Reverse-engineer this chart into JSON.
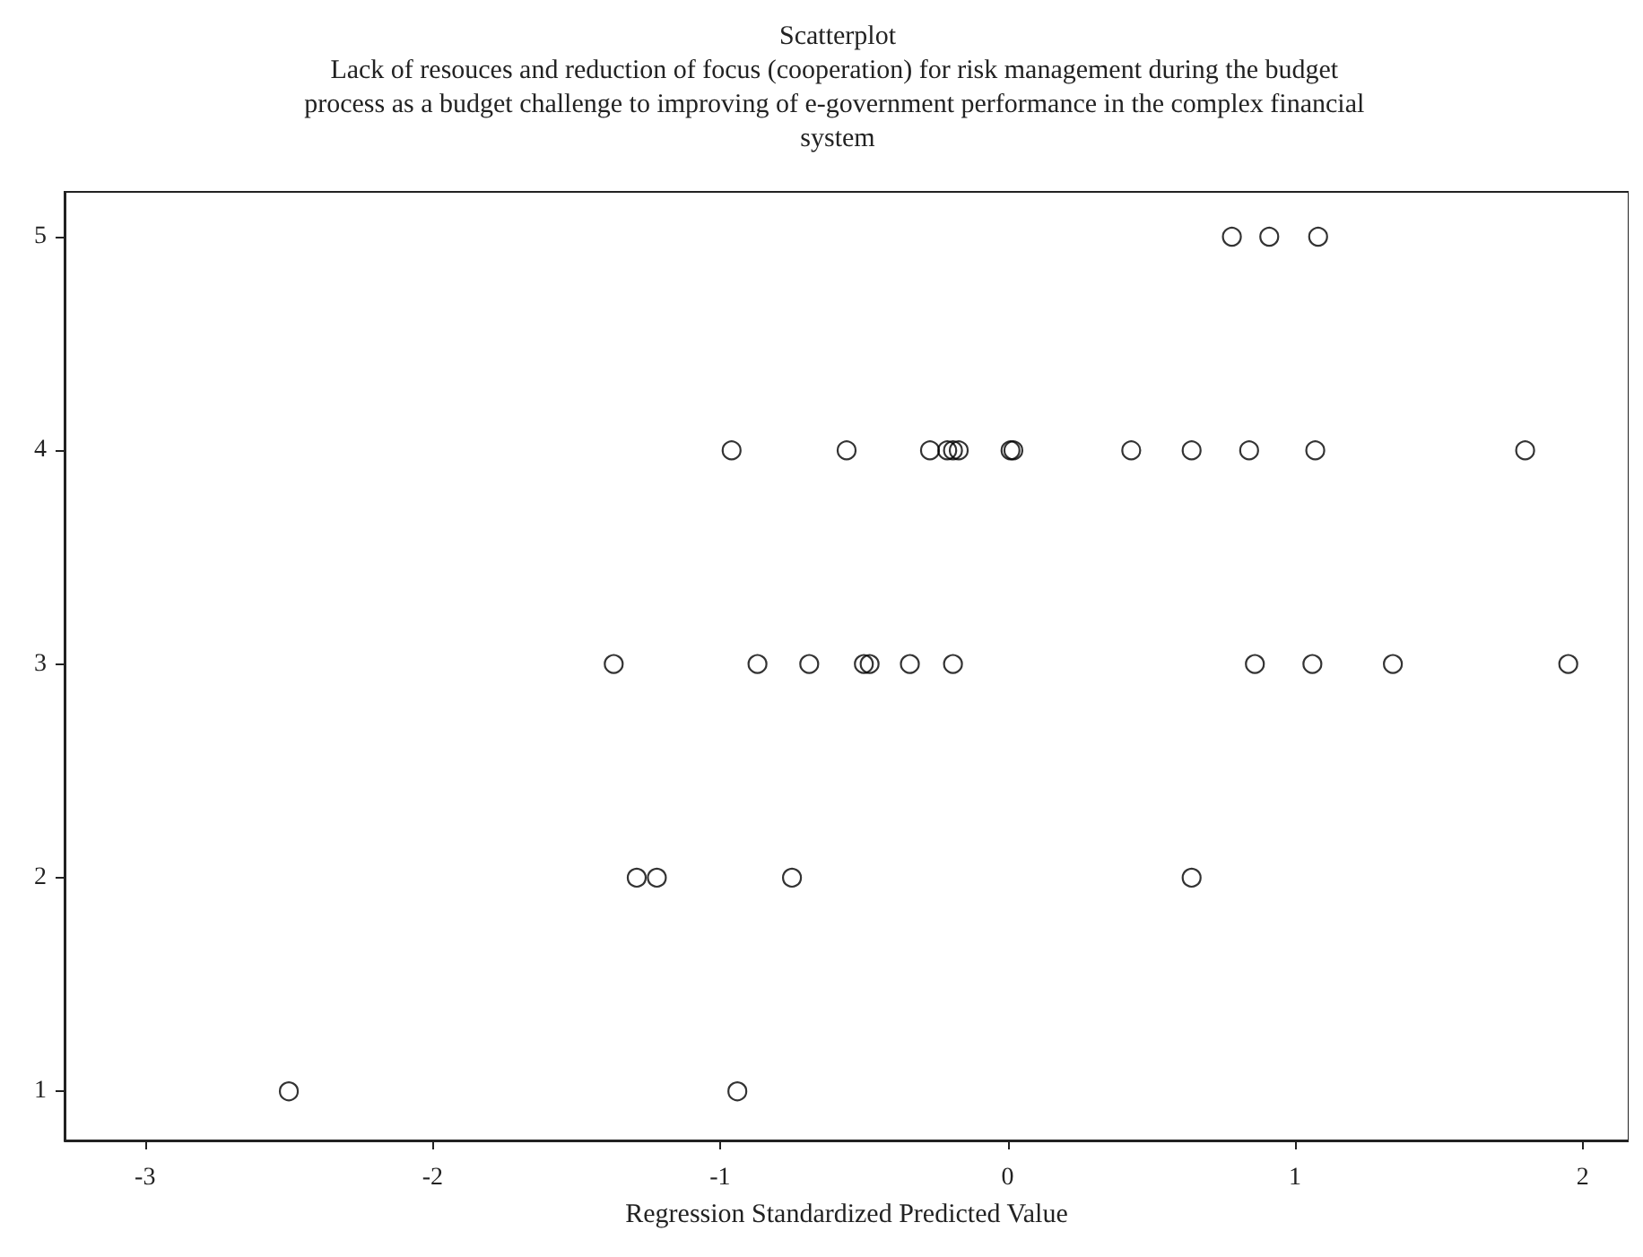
{
  "chart_data": {
    "type": "scatter",
    "title": "Scatterplot",
    "subtitle": "Lack of resouces and reduction of focus (cooperation) for risk management during the budget process as a budget challenge to improving of e-government performance in the complex financial system",
    "xlabel": "Regression Standardized Predicted Value",
    "series": [
      {
        "color": "#000000",
        "x": [
          0.78,
          0.91,
          1.08,
          -0.96,
          -0.56,
          -0.27,
          -0.21,
          -0.19,
          -0.17,
          0.01,
          0.02,
          0.43,
          0.64,
          0.84,
          1.07,
          1.8,
          -1.37,
          -0.87,
          -0.69,
          -0.5,
          -0.48,
          -0.34,
          -0.19,
          0.86,
          1.06,
          1.34,
          1.95,
          -1.29,
          -1.22,
          -0.75,
          0.64,
          -2.5,
          -0.94
        ],
        "values": [
          5,
          5,
          5,
          4,
          4,
          4,
          4,
          4,
          4,
          4,
          4,
          4,
          4,
          4,
          4,
          4,
          3,
          3,
          3,
          3,
          3,
          3,
          3,
          3,
          3,
          3,
          3,
          2,
          2,
          2,
          2,
          1,
          1
        ]
      }
    ],
    "marker": "circle",
    "xlim": [
      -3.28,
      2.16
    ],
    "xticks": [
      -3,
      -2,
      -1,
      0,
      1,
      2
    ],
    "ylim": [
      0.77,
      5.21
    ],
    "yticks": [
      1,
      2,
      3,
      4,
      5
    ]
  }
}
